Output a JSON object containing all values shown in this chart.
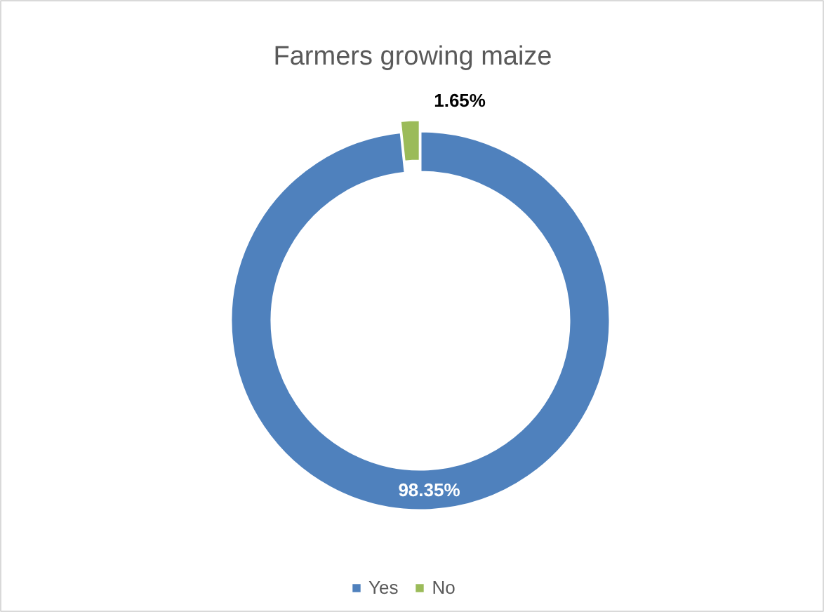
{
  "chart_data": {
    "type": "donut",
    "title": "Farmers growing maize",
    "categories": [
      "Yes",
      "No"
    ],
    "values": [
      98.35,
      1.65
    ],
    "colors": [
      "#4f81bd",
      "#9bbb59"
    ],
    "value_labels": [
      "98.35%",
      "1.65%"
    ],
    "legend": "bottom"
  }
}
